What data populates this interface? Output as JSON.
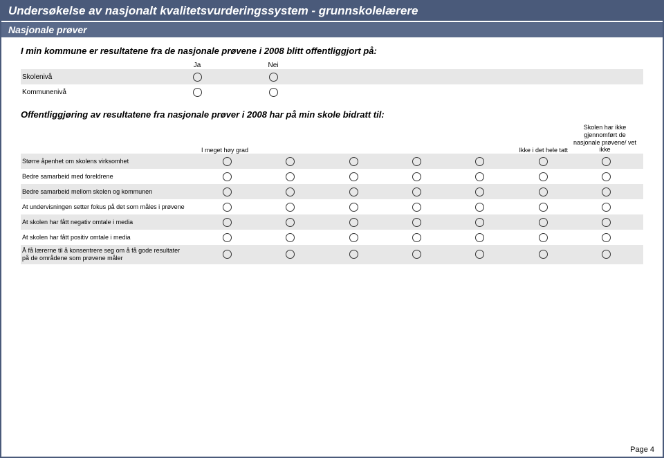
{
  "header": {
    "main": "Undersøkelse av nasjonalt kvalitetsvurderingssystem - grunnskolelærere",
    "sub": "Nasjonale prøver"
  },
  "q1": {
    "title": "I min kommune er resultatene fra de nasjonale prøvene i 2008 blitt offentliggjort på:",
    "cols": [
      "Ja",
      "Nei"
    ],
    "rows": [
      "Skolenivå",
      "Kommunenivå"
    ]
  },
  "q2": {
    "title": "Offentliggjøring av resultatene fra nasjonale prøver i 2008 har på min skole bidratt til:",
    "scale_left": "I meget høy grad",
    "scale_right": "Ikke i det hele tatt",
    "scale_extra": "Skolen har ikke gjennomført de nasjonale prøvene/ vet ikke",
    "rows": [
      "Større åpenhet om skolens virksomhet",
      "Bedre samarbeid med foreldrene",
      "Bedre samarbeid mellom skolen og kommunen",
      "At undervisningen setter fokus på det som måles i prøvene",
      "At skolen har fått negativ omtale i media",
      "At skolen har fått positiv omtale i media",
      "Å få lærerne til å konsentrere seg om å få gode resultater på de områdene som prøvene måler"
    ]
  },
  "footer": "Page 4"
}
